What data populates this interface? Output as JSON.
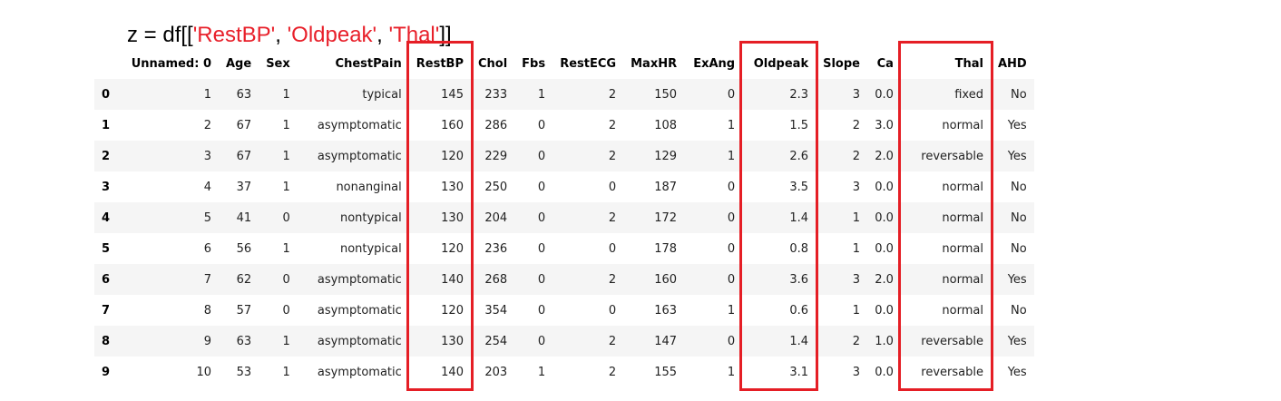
{
  "code": {
    "prefix": "z = df[[",
    "s1": "'RestBP'",
    "sep1": ", ",
    "s2": "'Oldpeak'",
    "sep2": ", ",
    "s3": "'Thal'",
    "suffix": "]]"
  },
  "table": {
    "columns": [
      "",
      "Unnamed: 0",
      "Age",
      "Sex",
      "ChestPain",
      "RestBP",
      "Chol",
      "Fbs",
      "RestECG",
      "MaxHR",
      "ExAng",
      "Oldpeak",
      "Slope",
      "Ca",
      "Thal",
      "AHD"
    ],
    "rows": [
      [
        "0",
        "1",
        "63",
        "1",
        "typical",
        "145",
        "233",
        "1",
        "2",
        "150",
        "0",
        "2.3",
        "3",
        "0.0",
        "fixed",
        "No"
      ],
      [
        "1",
        "2",
        "67",
        "1",
        "asymptomatic",
        "160",
        "286",
        "0",
        "2",
        "108",
        "1",
        "1.5",
        "2",
        "3.0",
        "normal",
        "Yes"
      ],
      [
        "2",
        "3",
        "67",
        "1",
        "asymptomatic",
        "120",
        "229",
        "0",
        "2",
        "129",
        "1",
        "2.6",
        "2",
        "2.0",
        "reversable",
        "Yes"
      ],
      [
        "3",
        "4",
        "37",
        "1",
        "nonanginal",
        "130",
        "250",
        "0",
        "0",
        "187",
        "0",
        "3.5",
        "3",
        "0.0",
        "normal",
        "No"
      ],
      [
        "4",
        "5",
        "41",
        "0",
        "nontypical",
        "130",
        "204",
        "0",
        "2",
        "172",
        "0",
        "1.4",
        "1",
        "0.0",
        "normal",
        "No"
      ],
      [
        "5",
        "6",
        "56",
        "1",
        "nontypical",
        "120",
        "236",
        "0",
        "0",
        "178",
        "0",
        "0.8",
        "1",
        "0.0",
        "normal",
        "No"
      ],
      [
        "6",
        "7",
        "62",
        "0",
        "asymptomatic",
        "140",
        "268",
        "0",
        "2",
        "160",
        "0",
        "3.6",
        "3",
        "2.0",
        "normal",
        "Yes"
      ],
      [
        "7",
        "8",
        "57",
        "0",
        "asymptomatic",
        "120",
        "354",
        "0",
        "0",
        "163",
        "1",
        "0.6",
        "1",
        "0.0",
        "normal",
        "No"
      ],
      [
        "8",
        "9",
        "63",
        "1",
        "asymptomatic",
        "130",
        "254",
        "0",
        "2",
        "147",
        "0",
        "1.4",
        "2",
        "1.0",
        "reversable",
        "Yes"
      ],
      [
        "9",
        "10",
        "53",
        "1",
        "asymptomatic",
        "140",
        "203",
        "1",
        "2",
        "155",
        "1",
        "3.1",
        "3",
        "0.0",
        "reversable",
        "Yes"
      ]
    ]
  },
  "highlighted_columns": [
    "RestBP",
    "Oldpeak",
    "Thal"
  ],
  "colors": {
    "highlight": "#e51e25",
    "string": "#e8202a"
  }
}
